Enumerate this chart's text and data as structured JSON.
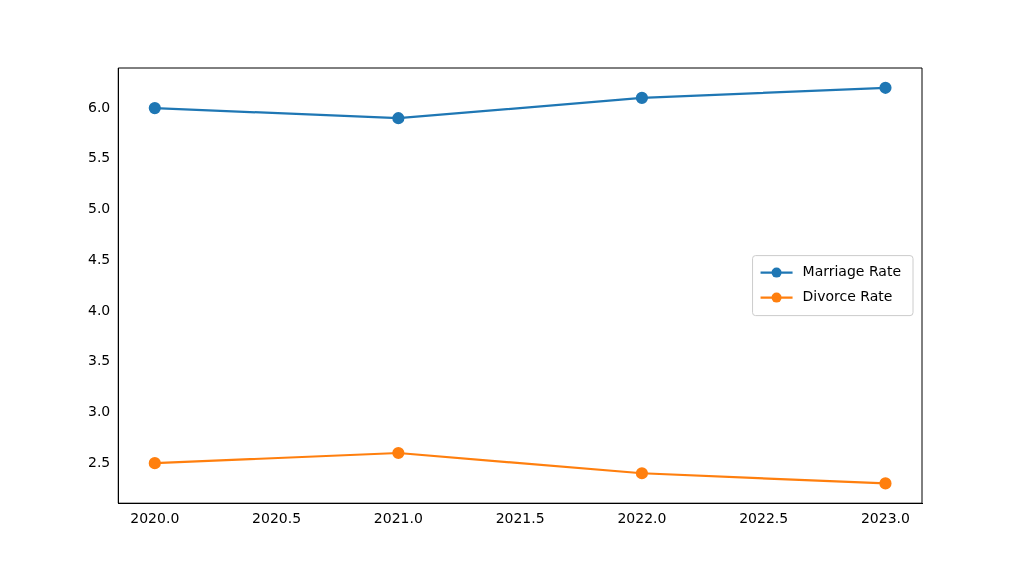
{
  "chart_data": {
    "type": "line",
    "x": [
      2020,
      2021,
      2022,
      2023
    ],
    "series": [
      {
        "name": "Marriage Rate",
        "color": "#1f77b4",
        "values": [
          6.0,
          5.9,
          6.1,
          6.2
        ]
      },
      {
        "name": "Divorce Rate",
        "color": "#ff7f0e",
        "values": [
          2.5,
          2.6,
          2.4,
          2.3
        ]
      }
    ],
    "xlim": [
      2019.85,
      2023.15
    ],
    "xticks": [
      {
        "value": 2020,
        "label": "2020.0"
      },
      {
        "value": 2020.5,
        "label": "2020.5"
      },
      {
        "value": 2021,
        "label": "2021.0"
      },
      {
        "value": 2021.5,
        "label": "2021.5"
      },
      {
        "value": 2022,
        "label": "2022.0"
      },
      {
        "value": 2022.5,
        "label": "2022.5"
      },
      {
        "value": 2023,
        "label": "2023.0"
      }
    ],
    "ylim": [
      2.105,
      6.395
    ],
    "yticks": [
      {
        "value": 2.5,
        "label": "2.5"
      },
      {
        "value": 3,
        "label": "3.0"
      },
      {
        "value": 3.5,
        "label": "3.5"
      },
      {
        "value": 4,
        "label": "4.0"
      },
      {
        "value": 4.5,
        "label": "4.5"
      },
      {
        "value": 5,
        "label": "5.0"
      },
      {
        "value": 5.5,
        "label": "5.5"
      },
      {
        "value": 6,
        "label": "6.0"
      }
    ],
    "grid": false,
    "legend": "right",
    "marker": "circle",
    "line_style": "solid"
  }
}
